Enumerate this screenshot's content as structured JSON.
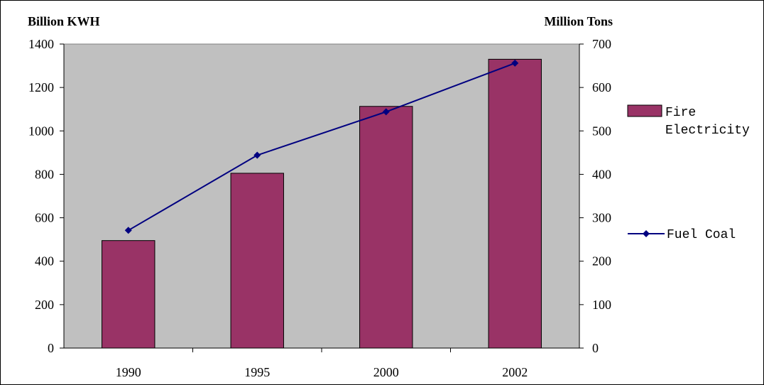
{
  "chart_data": {
    "type": "bar",
    "categories": [
      "1990",
      "1995",
      "2000",
      "2002"
    ],
    "series": [
      {
        "name": "Fire Electricity",
        "kind": "bar",
        "axis": "left",
        "values": [
          495,
          805,
          1113,
          1330
        ],
        "color": "#993366"
      },
      {
        "name": "Fuel Coal",
        "kind": "line",
        "axis": "right",
        "values": [
          271,
          444,
          544,
          656
        ],
        "color": "#000080"
      }
    ],
    "y_left": {
      "label": "Billion KWH",
      "ylim": [
        0,
        1400
      ],
      "ticks": [
        "0",
        "200",
        "400",
        "600",
        "800",
        "1000",
        "1200",
        "1400"
      ]
    },
    "y_right": {
      "label": "Million Tons",
      "ylim": [
        0,
        700
      ],
      "ticks": [
        "0",
        "100",
        "200",
        "300",
        "400",
        "500",
        "600",
        "700"
      ]
    },
    "plot_background": "#c0c0c0",
    "grid": false,
    "legend_placement": "right"
  }
}
